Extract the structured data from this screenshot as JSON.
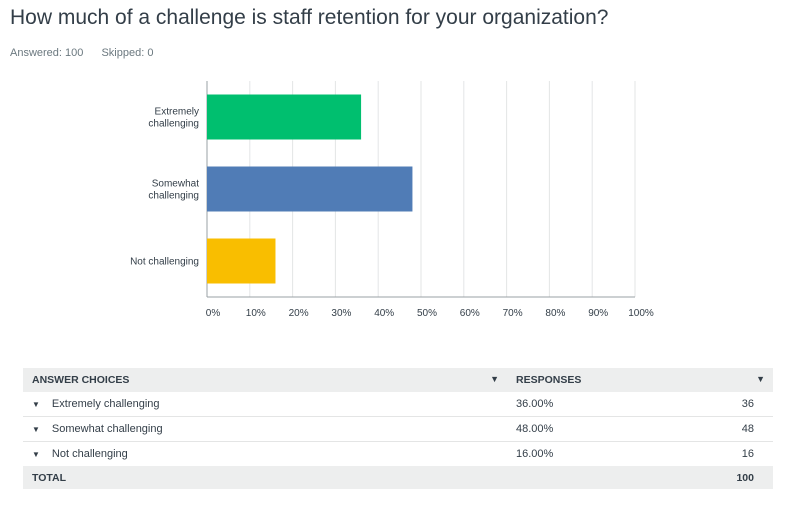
{
  "title": "How much of a challenge is staff retention for your organization?",
  "stats": {
    "answered": "Answered: 100",
    "skipped": "Skipped: 0"
  },
  "chart_data": {
    "type": "bar",
    "orientation": "horizontal",
    "categories": [
      [
        "Extremely",
        "challenging"
      ],
      [
        "Somewhat",
        "challenging"
      ],
      [
        "Not challenging"
      ]
    ],
    "values": [
      36,
      48,
      16
    ],
    "colors": [
      "#00bf6f",
      "#507cb6",
      "#f9be00"
    ],
    "xlim": [
      0,
      100
    ],
    "xticks": [
      "0%",
      "10%",
      "20%",
      "30%",
      "40%",
      "50%",
      "60%",
      "70%",
      "80%",
      "90%",
      "100%"
    ],
    "grid": true
  },
  "table": {
    "headers": {
      "choices": "ANSWER CHOICES",
      "responses": "RESPONSES"
    },
    "sort_icon": "caret-down-icon",
    "rows": [
      {
        "label": "Extremely challenging",
        "percent": "36.00%",
        "count": "36"
      },
      {
        "label": "Somewhat challenging",
        "percent": "48.00%",
        "count": "48"
      },
      {
        "label": "Not challenging",
        "percent": "16.00%",
        "count": "16"
      }
    ],
    "total": {
      "label": "TOTAL",
      "count": "100"
    }
  }
}
